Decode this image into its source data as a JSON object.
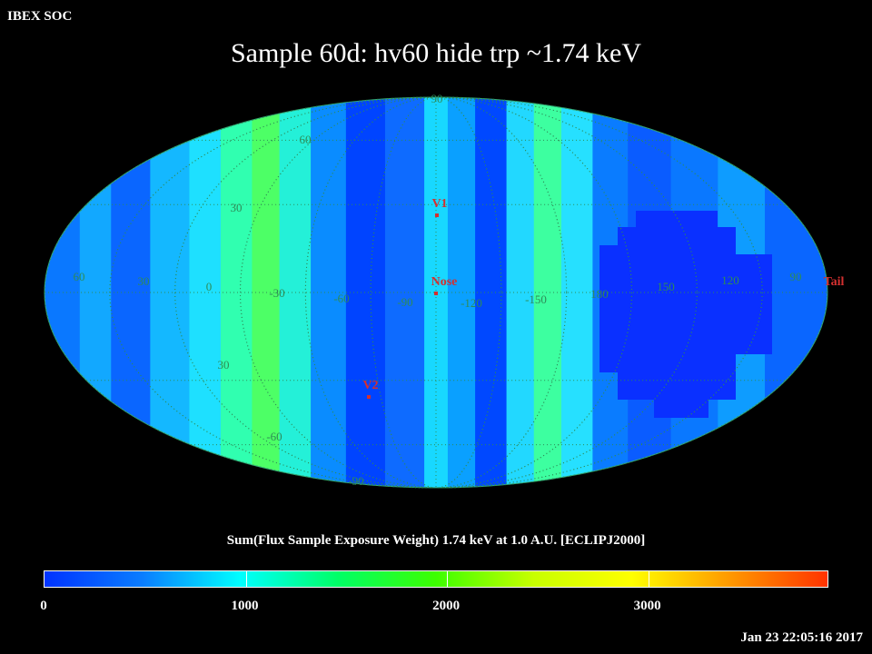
{
  "header": {
    "corner": "IBEX SOC",
    "title": "Sample 60d: hv60 hide trp ~1.74 keV"
  },
  "map": {
    "projection": "mollweide",
    "grid_color": "#2e8b57",
    "longitude_labels": [
      "60",
      "30",
      "0",
      "-30",
      "-60",
      "-90",
      "-120",
      "-150",
      "180",
      "150",
      "120",
      "90"
    ],
    "latitude_labels_north": [
      "90",
      "60",
      "30"
    ],
    "latitude_labels_south": [
      "30",
      "-60",
      "-90"
    ],
    "markers": [
      {
        "name": "V1",
        "label": "V1"
      },
      {
        "name": "Nose",
        "label": "Nose"
      },
      {
        "name": "V2",
        "label": "V2"
      },
      {
        "name": "Tail",
        "label": "Tail"
      }
    ],
    "marker_color": "#d33030"
  },
  "colorbar": {
    "title": "Sum(Flux Sample Exposure Weight)  1.74 keV at 1.0 A.U. [ECLIPJ2000]",
    "min": 0,
    "max": 3900,
    "tick_labels": [
      "0",
      "1000",
      "2000",
      "3000"
    ],
    "tick_values": [
      0,
      1000,
      2000,
      3000
    ],
    "colors": [
      "#0033ff",
      "#0a7dff",
      "#00ffff",
      "#00ff66",
      "#3dff00",
      "#c8ff00",
      "#ffff00",
      "#ff9900",
      "#ff3300"
    ]
  },
  "timestamp": "Jan 23 22:05:16 2017"
}
